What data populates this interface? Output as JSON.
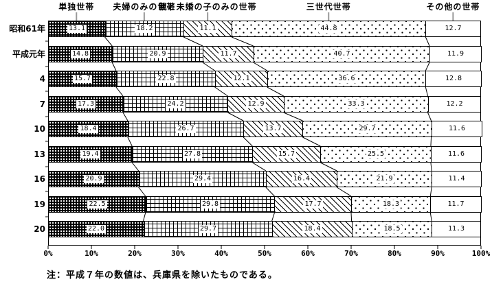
{
  "chart_data": {
    "type": "bar",
    "orientation": "horizontal-stacked",
    "title": "",
    "categories": [
      "昭和61年",
      "平成元年",
      "4",
      "7",
      "10",
      "13",
      "16",
      "19",
      "20"
    ],
    "series": [
      {
        "name": "単独世帯",
        "pattern": "dense-dots",
        "values": [
          13.1,
          14.8,
          15.7,
          17.3,
          18.4,
          19.4,
          20.9,
          22.5,
          22.0
        ]
      },
      {
        "name": "夫婦のみの世帯",
        "pattern": "grid",
        "values": [
          18.2,
          20.9,
          22.8,
          24.2,
          26.7,
          27.8,
          29.4,
          29.8,
          29.7
        ]
      },
      {
        "name": "親と未婚の子のみの世帯",
        "pattern": "diagonal-hatch",
        "values": [
          11.1,
          11.7,
          12.1,
          12.9,
          13.7,
          15.7,
          16.4,
          17.7,
          18.4
        ]
      },
      {
        "name": "三世代世帯",
        "pattern": "sparse-dots",
        "values": [
          44.8,
          40.7,
          36.6,
          33.3,
          29.7,
          25.5,
          21.9,
          18.3,
          18.5
        ]
      },
      {
        "name": "その他の世帯",
        "pattern": "plain-white",
        "values": [
          12.7,
          11.9,
          12.8,
          12.2,
          11.6,
          11.6,
          11.4,
          11.7,
          11.3
        ]
      }
    ],
    "x_ticks": [
      "0%",
      "10%",
      "20%",
      "30%",
      "40%",
      "50%",
      "60%",
      "70%",
      "80%",
      "90%",
      "100%"
    ],
    "xlim": [
      0,
      100
    ],
    "grid": false,
    "legend_position": "top-labels-with-leaders",
    "note": "注：平成７年の数値は、兵庫県を除いたものである。",
    "colors": {
      "ink": "#000000",
      "background": "#ffffff",
      "leader_line": "#999999"
    }
  }
}
